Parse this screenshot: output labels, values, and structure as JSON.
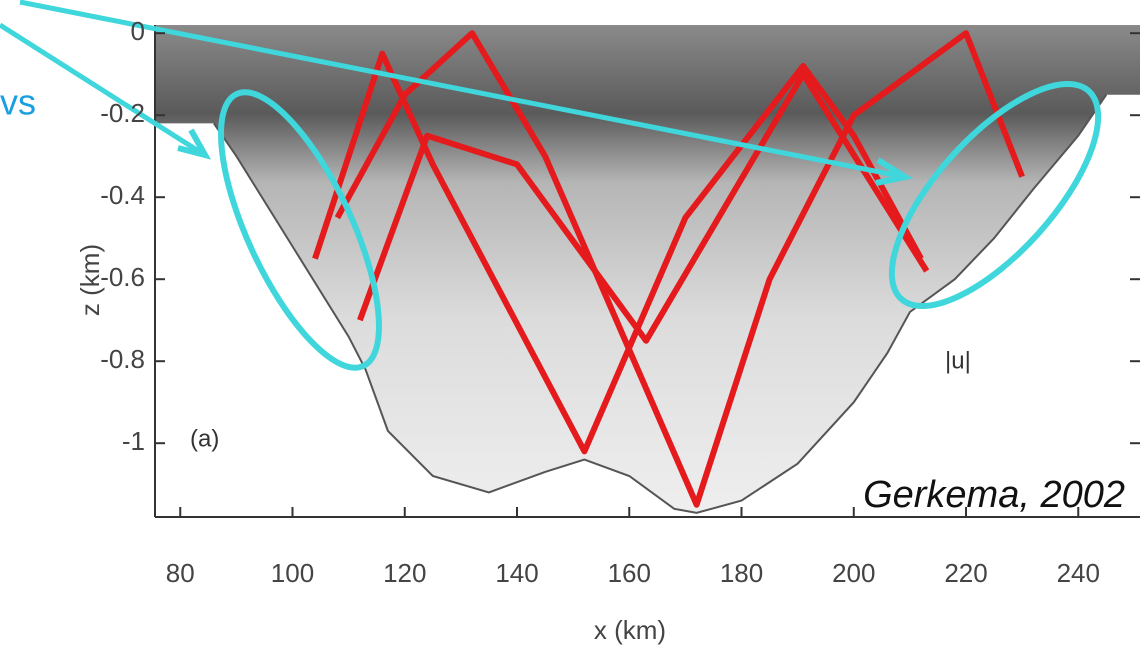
{
  "chart_data": {
    "type": "line",
    "corner_text": "vs",
    "field_label": "|u|",
    "panel_label": "(a)",
    "citation": "Gerkema, 2002",
    "xlabel": "x (km)",
    "ylabel": "z (km)",
    "xlim": [
      75.5,
      251
    ],
    "ylim": [
      -1.18,
      0.02
    ],
    "xticks": [
      80,
      100,
      120,
      140,
      160,
      180,
      200,
      220,
      240
    ],
    "yticks": [
      0,
      -0.2,
      -0.4,
      -0.6,
      -0.8,
      -1
    ],
    "topography": {
      "color": "#555555",
      "x": [
        86,
        90,
        100,
        110,
        113,
        117,
        125,
        135,
        145,
        152,
        160,
        168,
        172,
        180,
        190,
        200,
        206,
        210,
        218,
        225,
        232,
        240,
        245
      ],
      "y": [
        -0.22,
        -0.3,
        -0.52,
        -0.74,
        -0.82,
        -0.97,
        -1.08,
        -1.12,
        -1.07,
        -1.04,
        -1.08,
        -1.16,
        -1.17,
        -1.14,
        -1.05,
        -0.9,
        -0.78,
        -0.68,
        -0.6,
        -0.5,
        -0.38,
        -0.25,
        -0.15
      ]
    },
    "rays": [
      {
        "color": "#e41a1c",
        "x": [
          104,
          116,
          125,
          152,
          170,
          191,
          200,
          212
        ],
        "y": [
          -0.55,
          -0.05,
          -0.32,
          -1.02,
          -0.45,
          -0.08,
          -0.25,
          -0.55
        ]
      },
      {
        "color": "#e41a1c",
        "x": [
          108,
          120,
          132,
          145,
          172,
          185,
          200,
          220,
          230
        ],
        "y": [
          -0.45,
          -0.15,
          0,
          -0.3,
          -1.15,
          -0.6,
          -0.2,
          0,
          -0.35
        ]
      },
      {
        "color": "#e41a1c",
        "x": [
          112,
          124,
          140,
          163,
          191,
          213
        ],
        "y": [
          -0.7,
          -0.25,
          -0.32,
          -0.75,
          -0.1,
          -0.58
        ]
      }
    ]
  }
}
